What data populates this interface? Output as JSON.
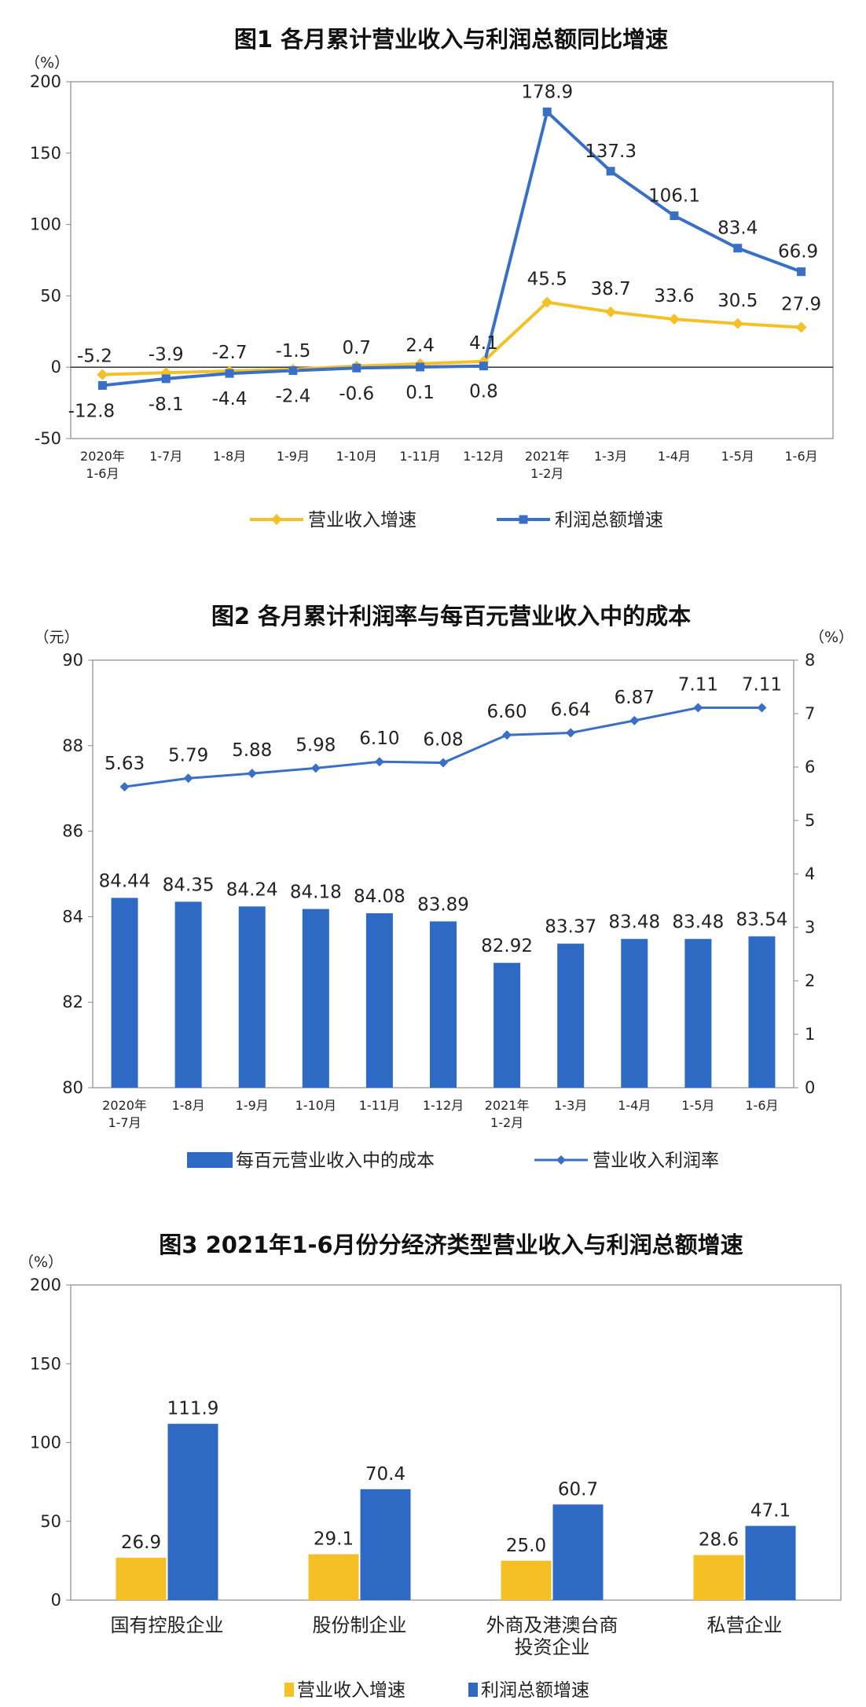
{
  "chart_data": [
    {
      "type": "line",
      "title": "图1  各月累计营业收入与利润总额同比增速",
      "y_unit": "（%）",
      "ylim": [
        -50,
        200
      ],
      "y_ticks": [
        -50,
        0,
        50,
        100,
        150,
        200
      ],
      "categories": [
        [
          "2020年",
          "1-6月"
        ],
        [
          "1-7月"
        ],
        [
          "1-8月"
        ],
        [
          "1-9月"
        ],
        [
          "1-10月"
        ],
        [
          "1-11月"
        ],
        [
          "1-12月"
        ],
        [
          "2021年",
          "1-2月"
        ],
        [
          "1-3月"
        ],
        [
          "1-4月"
        ],
        [
          "1-5月"
        ],
        [
          "1-6月"
        ]
      ],
      "series": [
        {
          "name": "营业收入增速",
          "color": "#F5BF26",
          "marker": "diamond",
          "values": [
            -5.2,
            -3.9,
            -2.7,
            -1.5,
            0.7,
            2.4,
            4.1,
            45.5,
            38.7,
            33.6,
            30.5,
            27.9
          ]
        },
        {
          "name": "利润总额增速",
          "color": "#3A6FC6",
          "marker": "square",
          "values": [
            -12.8,
            -8.1,
            -4.4,
            -2.4,
            -0.6,
            0.1,
            0.8,
            178.9,
            137.3,
            106.1,
            83.4,
            66.9
          ]
        }
      ],
      "grid": false,
      "legend": "bottom"
    },
    {
      "type": "bar+line",
      "title": "图2  各月累计利润率与每百元营业收入中的成本",
      "y_unit": "（元）",
      "y2_unit": "（%）",
      "ylim": [
        80,
        90
      ],
      "y_ticks": [
        80,
        82,
        84,
        86,
        88,
        90
      ],
      "y2lim": [
        0,
        8
      ],
      "y2_ticks": [
        0,
        1,
        2,
        3,
        4,
        5,
        6,
        7,
        8
      ],
      "categories": [
        [
          "2020年",
          "1-7月"
        ],
        [
          "1-8月"
        ],
        [
          "1-9月"
        ],
        [
          "1-10月"
        ],
        [
          "1-11月"
        ],
        [
          "1-12月"
        ],
        [
          "2021年",
          "1-2月"
        ],
        [
          "1-3月"
        ],
        [
          "1-4月"
        ],
        [
          "1-5月"
        ],
        [
          "1-6月"
        ]
      ],
      "series": [
        {
          "name": "每百元营业收入中的成本",
          "kind": "bar",
          "axis": "left",
          "color": "#2E6AC4",
          "values": [
            84.44,
            84.35,
            84.24,
            84.18,
            84.08,
            83.89,
            82.92,
            83.37,
            83.48,
            83.48,
            83.54
          ]
        },
        {
          "name": "营业收入利润率",
          "kind": "line",
          "axis": "right",
          "color": "#3A6FC6",
          "marker": "diamond",
          "values": [
            5.63,
            5.79,
            5.88,
            5.98,
            6.1,
            6.08,
            6.6,
            6.64,
            6.87,
            7.11,
            7.11
          ]
        }
      ],
      "grid": false,
      "legend": "bottom"
    },
    {
      "type": "bar",
      "title": "图3  2021年1-6月份分经济类型营业收入与利润总额增速",
      "y_unit": "（%）",
      "ylim": [
        0,
        200
      ],
      "y_ticks": [
        0,
        50,
        100,
        150,
        200
      ],
      "categories": [
        [
          "国有控股企业"
        ],
        [
          "股份制企业"
        ],
        [
          "外商及港澳台商",
          "投资企业"
        ],
        [
          "私营企业"
        ]
      ],
      "series": [
        {
          "name": "营业收入增速",
          "color": "#F5BF26",
          "values": [
            26.9,
            29.1,
            25.0,
            28.6
          ]
        },
        {
          "name": "利润总额增速",
          "color": "#2E6AC4",
          "values": [
            111.9,
            70.4,
            60.7,
            47.1
          ]
        }
      ],
      "grid": false,
      "legend": "bottom"
    }
  ]
}
